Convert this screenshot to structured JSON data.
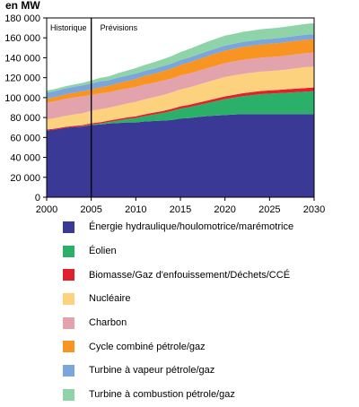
{
  "chart_data": {
    "type": "area",
    "stacked": true,
    "ylabel": "en MW",
    "ylim": [
      0,
      180000
    ],
    "yticks": [
      "0",
      "20 000",
      "40 000",
      "60 000",
      "80 000",
      "100 000",
      "120 000",
      "140 000",
      "160 000",
      "180 000"
    ],
    "yticks_values": [
      0,
      20000,
      40000,
      60000,
      80000,
      100000,
      120000,
      140000,
      160000,
      180000
    ],
    "xlim": [
      2000,
      2030
    ],
    "xticks": [
      "2000",
      "2005",
      "2010",
      "2015",
      "2020",
      "2025",
      "2030"
    ],
    "xticks_values": [
      2000,
      2005,
      2010,
      2015,
      2020,
      2025,
      2030
    ],
    "split_year": 2005,
    "annotations": {
      "history": "Historique",
      "forecast": "Prévisions"
    },
    "grid": false,
    "legend_position": "bottom",
    "x": [
      2000,
      2001,
      2002,
      2003,
      2004,
      2005,
      2006,
      2007,
      2008,
      2009,
      2010,
      2011,
      2012,
      2013,
      2014,
      2015,
      2016,
      2017,
      2018,
      2019,
      2020,
      2021,
      2022,
      2023,
      2024,
      2025,
      2026,
      2027,
      2028,
      2029,
      2030
    ],
    "series": [
      {
        "name": "Énergie hydraulique/houlomotrice/marémotrice",
        "color": "#3a3a96",
        "values": [
          67000,
          68000,
          69500,
          70500,
          71000,
          72500,
          73000,
          74000,
          74500,
          75000,
          75000,
          76000,
          76500,
          77000,
          77500,
          79000,
          79500,
          80500,
          81500,
          82000,
          82500,
          83000,
          83500,
          83500,
          83500,
          83500,
          83500,
          83500,
          83500,
          83500,
          83500
        ]
      },
      {
        "name": "Éolien",
        "color": "#2bb06a",
        "values": [
          0,
          0,
          0,
          0,
          200,
          500,
          1000,
          1500,
          2500,
          3500,
          4500,
          5500,
          6500,
          7500,
          9000,
          10000,
          11000,
          12000,
          13000,
          14500,
          16000,
          17000,
          18000,
          19000,
          20000,
          20500,
          21000,
          21500,
          22000,
          22500,
          23000
        ]
      },
      {
        "name": "Biomasse/Gaz d'enfouissement/Déchets/CCÉ",
        "color": "#e0202a",
        "values": [
          1000,
          1000,
          1000,
          1000,
          1100,
          1200,
          1300,
          1400,
          1500,
          1600,
          1700,
          1800,
          1900,
          2000,
          2100,
          2200,
          2300,
          2400,
          2500,
          2600,
          2700,
          2800,
          2900,
          3000,
          3100,
          3200,
          3300,
          3400,
          3500,
          3600,
          3700
        ]
      },
      {
        "name": "Nucléaire",
        "color": "#fcd27e",
        "values": [
          10000,
          10500,
          11000,
          11500,
          12000,
          12500,
          13000,
          13000,
          13500,
          14000,
          14500,
          15000,
          15500,
          16000,
          16500,
          17000,
          17500,
          18000,
          18500,
          19000,
          19500,
          19500,
          19500,
          19500,
          19500,
          19500,
          19500,
          20000,
          20500,
          21000,
          21000
        ]
      },
      {
        "name": "Charbon",
        "color": "#e2a3ad",
        "values": [
          17000,
          17000,
          17000,
          17000,
          17000,
          16000,
          16000,
          15500,
          15500,
          15000,
          15000,
          15000,
          14500,
          14500,
          14000,
          14000,
          14000,
          14000,
          14000,
          14000,
          14000,
          14000,
          14000,
          14000,
          14000,
          14000,
          14000,
          14000,
          14000,
          14000,
          14000
        ]
      },
      {
        "name": "Cycle combiné pétrole/gaz",
        "color": "#f79422",
        "values": [
          4000,
          4200,
          4500,
          4800,
          5000,
          5500,
          6000,
          6500,
          7000,
          7500,
          8000,
          8500,
          9000,
          9500,
          10000,
          10500,
          11000,
          11500,
          12000,
          12300,
          12500,
          12700,
          13000,
          13100,
          13200,
          13300,
          13400,
          13500,
          13500,
          13500,
          13500
        ]
      },
      {
        "name": "Turbine à vapeur pétrole/gaz",
        "color": "#7aa6dc",
        "values": [
          6000,
          6000,
          6000,
          6000,
          6000,
          6000,
          6000,
          5500,
          5500,
          5500,
          5500,
          5000,
          5000,
          5000,
          5000,
          5000,
          5000,
          5000,
          5000,
          5000,
          5000,
          5000,
          5000,
          5000,
          5000,
          5000,
          5000,
          5000,
          5000,
          5000,
          5000
        ]
      },
      {
        "name": "Turbine à combustion pétrole/gaz",
        "color": "#8fd4a8",
        "values": [
          2000,
          2100,
          2200,
          2300,
          2400,
          3000,
          3500,
          4000,
          4500,
          5000,
          5500,
          6000,
          6500,
          7000,
          7500,
          8000,
          8500,
          9000,
          9500,
          9700,
          10000,
          10000,
          10000,
          10200,
          10300,
          10400,
          10500,
          10600,
          10700,
          10800,
          11000
        ]
      }
    ]
  }
}
